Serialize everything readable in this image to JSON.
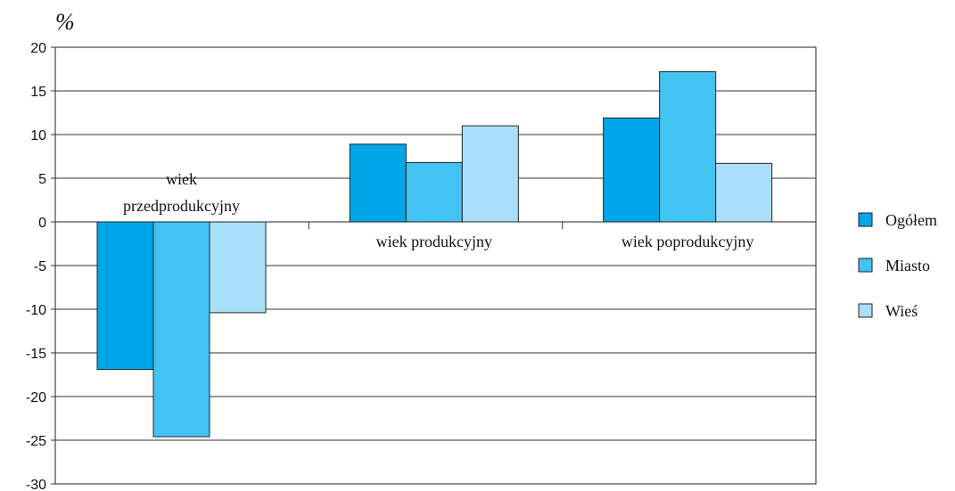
{
  "chart_data": {
    "type": "bar",
    "ylabel": "%",
    "ylim": [
      -30,
      20
    ],
    "yticks": [
      20,
      15,
      10,
      5,
      0,
      -5,
      -10,
      -15,
      -20,
      -25,
      -30
    ],
    "grid": true,
    "legend_position": "right",
    "categories": [
      [
        "wiek",
        "przedprodukcyjny"
      ],
      [
        "wiek produkcyjny"
      ],
      [
        "wiek poprodukcyjny"
      ]
    ],
    "series": [
      {
        "name": "Ogółem",
        "color": "#00a6e8",
        "values": [
          -16.9,
          8.9,
          11.9
        ]
      },
      {
        "name": "Miasto",
        "color": "#42c3f2",
        "values": [
          -24.6,
          6.8,
          17.2
        ]
      },
      {
        "name": "Wieś",
        "color": "#aadffa",
        "values": [
          -10.4,
          11.0,
          6.7
        ]
      }
    ]
  }
}
